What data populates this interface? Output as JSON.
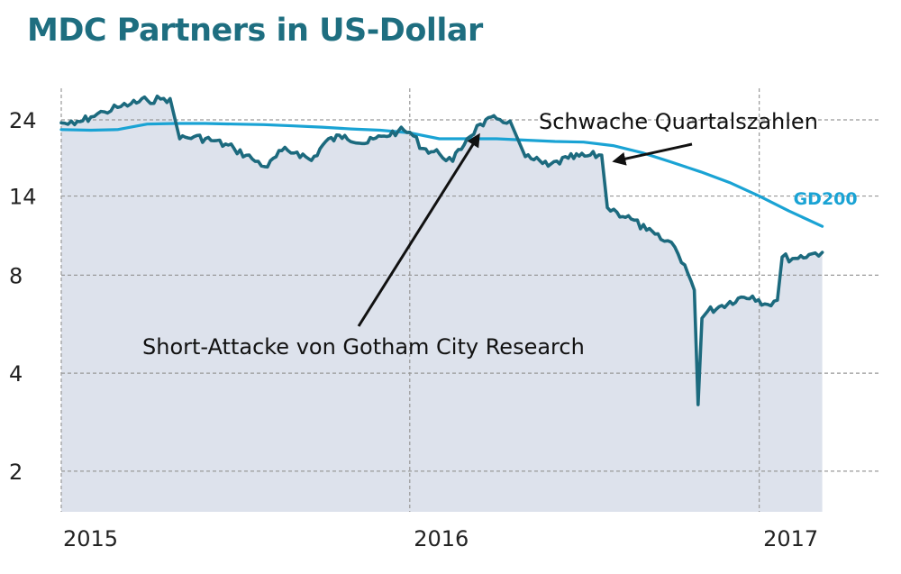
{
  "title": "MDC Partners in US-Dollar",
  "colors": {
    "title": "#1e6e80",
    "price_line": "#1c6a7e",
    "area_fill": "#dde2ec",
    "gd200_line": "#1aa3d4",
    "grid": "#999999",
    "annotation": "#111111"
  },
  "chart_data": {
    "type": "line",
    "title": "MDC Partners in US-Dollar",
    "y_scale": "log",
    "ylim": [
      1.5,
      30
    ],
    "xlim": [
      "2015-01-01",
      "2017-03-15"
    ],
    "grid": true,
    "y_ticks": [
      {
        "value": 24,
        "label": "24"
      },
      {
        "value": 14,
        "label": "14"
      },
      {
        "value": 8,
        "label": "8"
      },
      {
        "value": 4,
        "label": "4"
      },
      {
        "value": 2,
        "label": "2"
      }
    ],
    "x_ticks": [
      {
        "value": "2015-01-01",
        "label": "2015"
      },
      {
        "value": "2016-01-01",
        "label": "2016"
      },
      {
        "value": "2017-01-01",
        "label": "2017"
      }
    ],
    "series": [
      {
        "name": "",
        "style": "line-area",
        "x": [
          "2015-01-01",
          "2015-01-15",
          "2015-02-01",
          "2015-02-15",
          "2015-03-01",
          "2015-03-15",
          "2015-04-01",
          "2015-04-15",
          "2015-04-25",
          "2015-05-05",
          "2015-05-20",
          "2015-06-10",
          "2015-07-01",
          "2015-07-20",
          "2015-08-05",
          "2015-08-20",
          "2015-09-05",
          "2015-09-20",
          "2015-10-05",
          "2015-10-25",
          "2015-11-15",
          "2015-12-05",
          "2015-12-20",
          "2016-01-01",
          "2016-01-15",
          "2016-02-01",
          "2016-02-15",
          "2016-03-01",
          "2016-03-15",
          "2016-04-01",
          "2016-04-15",
          "2016-05-01",
          "2016-05-10",
          "2016-05-25",
          "2016-06-15",
          "2016-07-05",
          "2016-07-20",
          "2016-07-26",
          "2016-08-05",
          "2016-08-20",
          "2016-09-05",
          "2016-09-20",
          "2016-10-01",
          "2016-10-15",
          "2016-10-25",
          "2016-10-29",
          "2016-11-02",
          "2016-11-08",
          "2016-11-20",
          "2016-12-10",
          "2016-12-25",
          "2017-01-10",
          "2017-01-20",
          "2017-01-25",
          "2017-02-05",
          "2017-02-25",
          "2017-03-08"
        ],
        "values": [
          23.5,
          23.2,
          24.5,
          25.4,
          26.2,
          26.9,
          27.6,
          27.8,
          27.9,
          21.0,
          21.3,
          20.7,
          19.6,
          18.2,
          17.2,
          19.3,
          19.1,
          18.0,
          20.6,
          21.5,
          20.3,
          21.4,
          22.2,
          22.0,
          19.6,
          18.9,
          17.9,
          21.0,
          23.3,
          24.2,
          23.8,
          18.5,
          18.1,
          17.3,
          18.3,
          18.6,
          18.7,
          12.9,
          12.5,
          11.9,
          11.0,
          10.3,
          10.1,
          8.6,
          7.2,
          3.2,
          5.9,
          6.2,
          6.4,
          6.8,
          6.9,
          6.5,
          6.7,
          9.1,
          9.0,
          9.3,
          9.4
        ]
      },
      {
        "name": "GD200",
        "style": "line",
        "x": [
          "2015-01-01",
          "2015-02-01",
          "2015-03-01",
          "2015-04-01",
          "2015-05-01",
          "2015-06-01",
          "2015-07-01",
          "2015-08-01",
          "2015-09-01",
          "2015-10-01",
          "2015-11-01",
          "2015-12-01",
          "2016-01-01",
          "2016-02-01",
          "2016-03-01",
          "2016-04-01",
          "2016-05-01",
          "2016-06-01",
          "2016-07-01",
          "2016-08-01",
          "2016-09-01",
          "2016-10-01",
          "2016-11-01",
          "2016-12-01",
          "2017-01-01",
          "2017-02-01",
          "2017-03-08"
        ],
        "values": [
          22.4,
          22.3,
          22.4,
          23.3,
          23.4,
          23.4,
          23.3,
          23.2,
          23.0,
          22.8,
          22.5,
          22.3,
          21.9,
          21.0,
          21.0,
          21.0,
          20.8,
          20.6,
          20.5,
          20.0,
          19.0,
          17.8,
          16.6,
          15.4,
          14.0,
          12.6,
          11.3
        ]
      }
    ],
    "annotations": [
      {
        "text": "Schwache Quartalszahlen",
        "target_x": "2016-07-28",
        "target_y": 18.5
      },
      {
        "text": "Short-Attacke von Gotham City Research",
        "target_x": "2016-03-15",
        "target_y": 23.5
      }
    ]
  }
}
